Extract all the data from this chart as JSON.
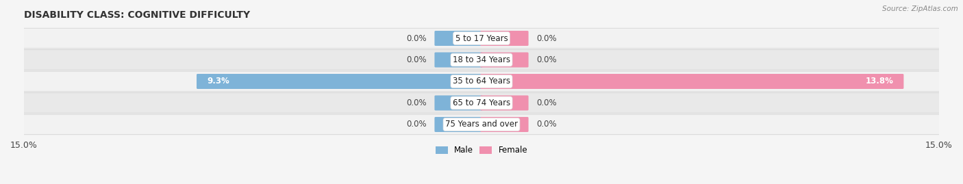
{
  "title": "DISABILITY CLASS: COGNITIVE DIFFICULTY",
  "source": "Source: ZipAtlas.com",
  "categories": [
    "5 to 17 Years",
    "18 to 34 Years",
    "35 to 64 Years",
    "65 to 74 Years",
    "75 Years and over"
  ],
  "male_values": [
    0.0,
    0.0,
    9.3,
    0.0,
    0.0
  ],
  "female_values": [
    0.0,
    0.0,
    13.8,
    0.0,
    0.0
  ],
  "xlim": 15.0,
  "male_color": "#7eb3d8",
  "female_color": "#f090ae",
  "row_colors": [
    "#f0f0f0",
    "#e8e8e8",
    "#f0f0f0",
    "#e8e8e8",
    "#f0f0f0"
  ],
  "bg_color": "#f5f5f5",
  "male_label": "Male",
  "female_label": "Female",
  "title_fontsize": 10,
  "label_fontsize": 8.5,
  "tick_fontsize": 9,
  "stub_size": 1.5,
  "bar_height": 0.62
}
